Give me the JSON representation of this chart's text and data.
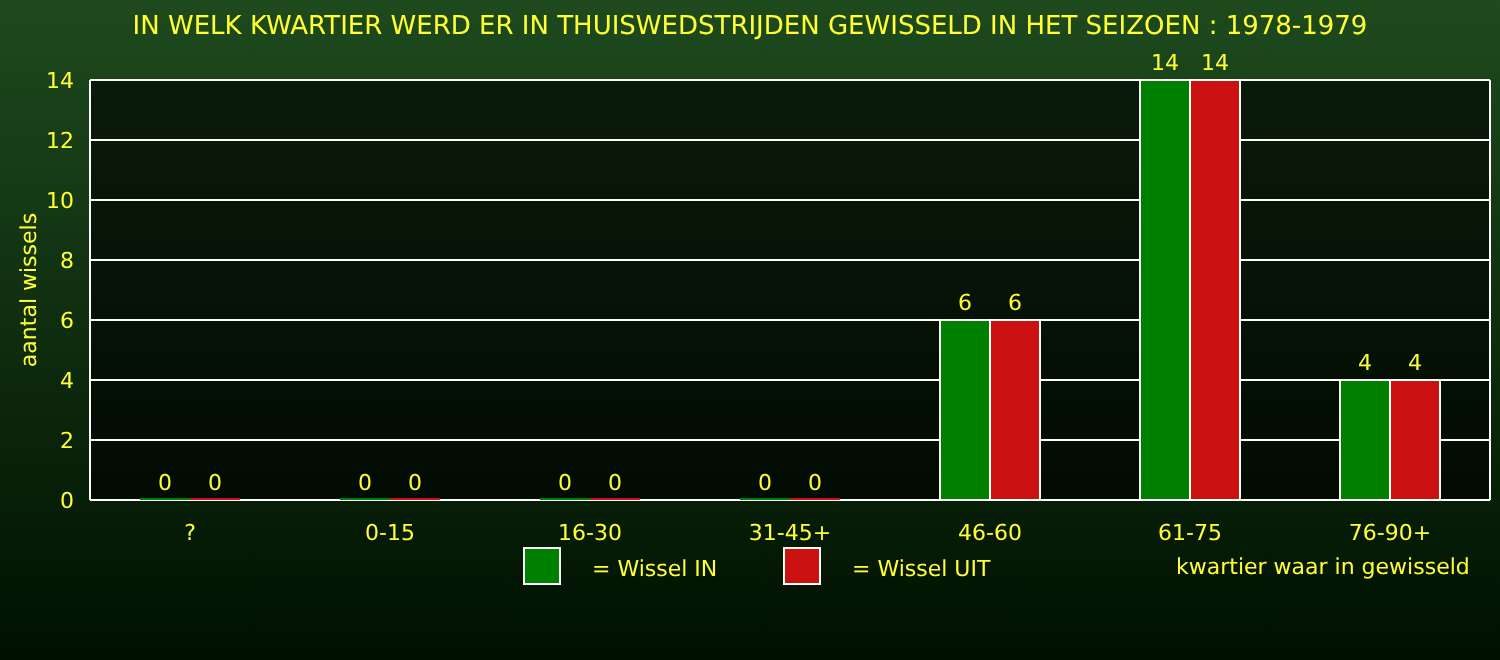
{
  "chart_data": {
    "type": "bar",
    "title": "IN WELK KWARTIER WERD ER IN THUISWEDSTRIJDEN GEWISSELD IN HET SEIZOEN : 1978-1979",
    "xlabel": "kwartier waar in gewisseld",
    "ylabel": "aantal wissels",
    "categories": [
      "?",
      "0-15",
      "16-30",
      "31-45+",
      "46-60",
      "61-75",
      "76-90+"
    ],
    "series": [
      {
        "name": "= Wissel IN",
        "color": "#008000",
        "values": [
          0,
          0,
          0,
          0,
          6,
          14,
          4
        ]
      },
      {
        "name": "= Wissel UIT",
        "color": "#cc1111",
        "values": [
          0,
          0,
          0,
          0,
          6,
          14,
          4
        ]
      }
    ],
    "ylim": [
      0,
      14
    ],
    "yticks": [
      0,
      2,
      4,
      6,
      8,
      10,
      12,
      14
    ],
    "grid": "y",
    "legend": "bottom",
    "data_labels": true
  }
}
